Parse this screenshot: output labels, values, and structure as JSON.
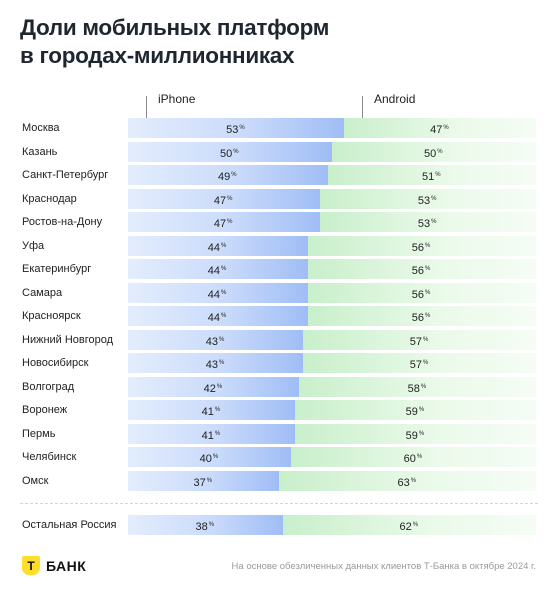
{
  "title": {
    "line1": "Доли мобильных платформ",
    "line2": "в городах-миллионниках"
  },
  "chart_data": {
    "type": "bar",
    "stacked": "100%",
    "series_names": [
      "iPhone",
      "Android"
    ],
    "unit": "%",
    "categories": [
      "Москва",
      "Казань",
      "Санкт-Петербург",
      "Краснодар",
      "Ростов-на-Дону",
      "Уфа",
      "Екатеринбург",
      "Самара",
      "Красноярск",
      "Нижний Новгород",
      "Новосибирск",
      "Волгоград",
      "Воронеж",
      "Пермь",
      "Челябинск",
      "Омск"
    ],
    "series": [
      {
        "name": "iPhone",
        "values": [
          53,
          50,
          49,
          47,
          47,
          44,
          44,
          44,
          44,
          43,
          43,
          42,
          41,
          41,
          40,
          37
        ]
      },
      {
        "name": "Android",
        "values": [
          47,
          50,
          51,
          53,
          53,
          56,
          56,
          56,
          56,
          57,
          57,
          58,
          59,
          59,
          60,
          63
        ]
      }
    ],
    "total": {
      "category": "Остальная Россия",
      "iphone": 38,
      "android": 62
    },
    "colors": {
      "iphone": "#9fbdf5",
      "android": "#c9efcb"
    }
  },
  "logo": {
    "mark": "Т",
    "text": "БАНК"
  },
  "footnote": "На основе обезличенных данных клиентов Т-Банка в октябре 2024 г."
}
